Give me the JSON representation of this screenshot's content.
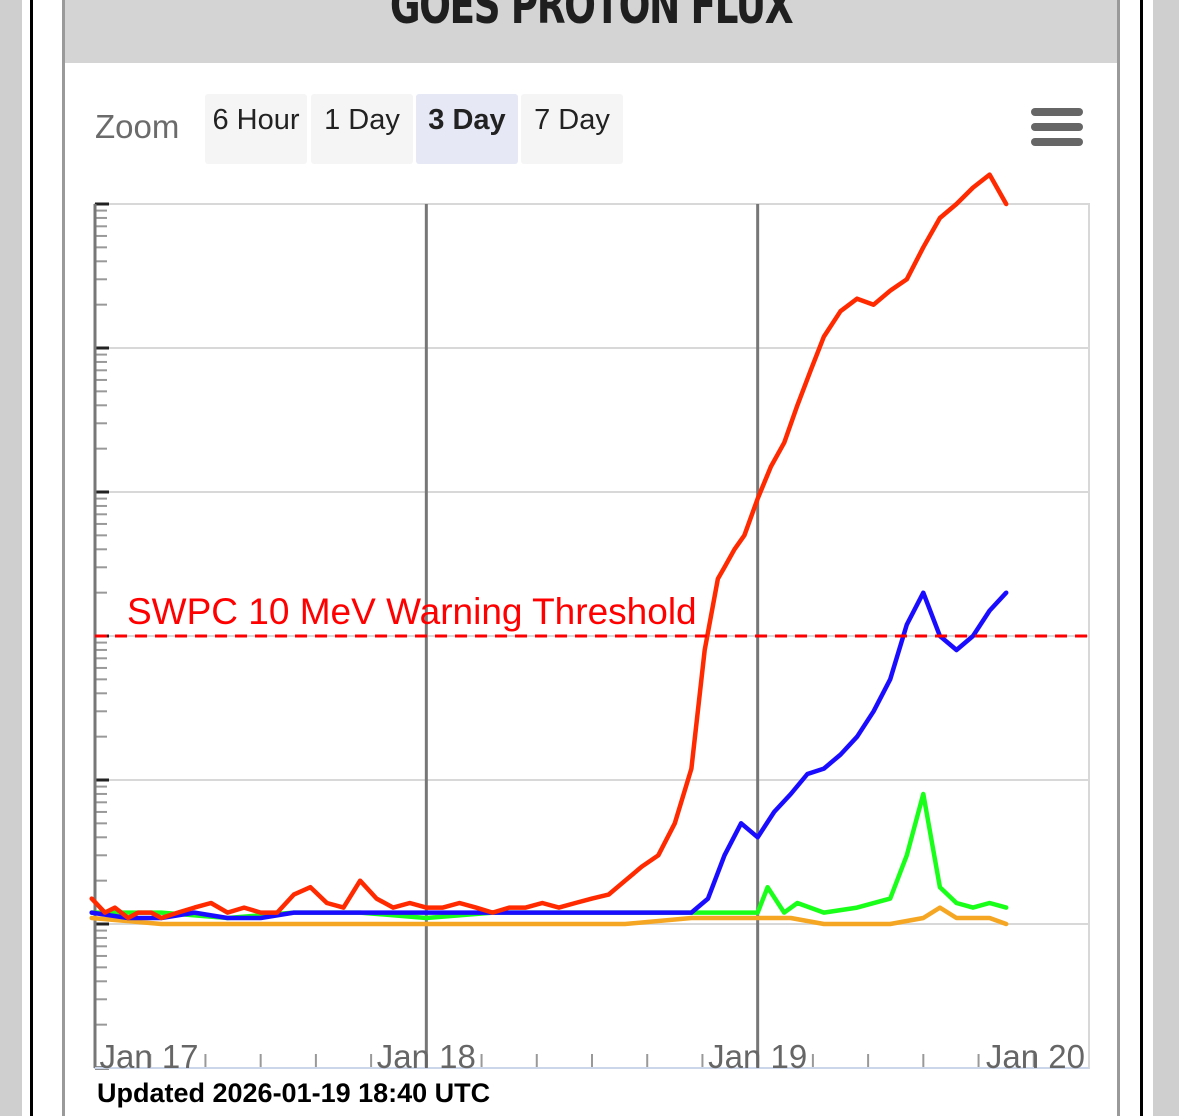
{
  "title": "GOES PROTON FLUX",
  "zoom": {
    "label": "Zoom",
    "options": [
      "6 Hour",
      "1 Day",
      "3 Day",
      "7 Day"
    ],
    "selected": "3 Day"
  },
  "menu_icon": "hamburger-menu-icon",
  "updated": "Updated 2026-01-19 18:40 UTC",
  "threshold": {
    "label": "SWPC 10 MeV Warning Threshold",
    "value": 10,
    "color": "#ff0000"
  },
  "chart_data": {
    "type": "line",
    "x_label": "",
    "y_label": "",
    "x_ticks": [
      {
        "label": "Jan 17",
        "day": 17.0
      },
      {
        "label": "Jan 18",
        "day": 18.0
      },
      {
        "label": "Jan 19",
        "day": 19.0
      },
      {
        "label": "Jan 20",
        "day": 20.0
      }
    ],
    "xlim": [
      17.0,
      20.0
    ],
    "y_scale": "log",
    "ylim": [
      0.01,
      10000
    ],
    "grid": true,
    "series": [
      {
        "color": "#ff2a00",
        "x": [
          16.99,
          17.03,
          17.06,
          17.1,
          17.13,
          17.17,
          17.2,
          17.25,
          17.3,
          17.35,
          17.4,
          17.45,
          17.5,
          17.55,
          17.6,
          17.65,
          17.7,
          17.75,
          17.8,
          17.85,
          17.9,
          17.95,
          18.0,
          18.05,
          18.1,
          18.15,
          18.2,
          18.25,
          18.3,
          18.35,
          18.4,
          18.45,
          18.5,
          18.55,
          18.6,
          18.65,
          18.7,
          18.75,
          18.8,
          18.84,
          18.88,
          18.9,
          18.93,
          18.96,
          19.0,
          19.04,
          19.08,
          19.12,
          19.16,
          19.2,
          19.25,
          19.3,
          19.35,
          19.4,
          19.45,
          19.5,
          19.55,
          19.6,
          19.65,
          19.7,
          19.75
        ],
        "y": [
          0.15,
          0.12,
          0.13,
          0.11,
          0.12,
          0.12,
          0.11,
          0.12,
          0.13,
          0.14,
          0.12,
          0.13,
          0.12,
          0.12,
          0.16,
          0.18,
          0.14,
          0.13,
          0.2,
          0.15,
          0.13,
          0.14,
          0.13,
          0.13,
          0.14,
          0.13,
          0.12,
          0.13,
          0.13,
          0.14,
          0.13,
          0.14,
          0.15,
          0.16,
          0.2,
          0.25,
          0.3,
          0.5,
          1.2,
          8,
          25,
          30,
          40,
          50,
          90,
          150,
          220,
          400,
          700,
          1200,
          1800,
          2200,
          2000,
          2500,
          3000,
          5000,
          8000,
          10000,
          13000,
          16000,
          10000
        ]
      },
      {
        "color": "#1a0dff",
        "x": [
          16.99,
          17.1,
          17.2,
          17.3,
          17.4,
          17.5,
          17.6,
          17.7,
          17.8,
          17.9,
          18.0,
          18.1,
          18.2,
          18.3,
          18.4,
          18.5,
          18.6,
          18.7,
          18.8,
          18.85,
          18.9,
          18.95,
          19.0,
          19.05,
          19.1,
          19.15,
          19.2,
          19.25,
          19.3,
          19.35,
          19.4,
          19.45,
          19.5,
          19.55,
          19.6,
          19.65,
          19.7,
          19.75
        ],
        "y": [
          0.12,
          0.11,
          0.11,
          0.12,
          0.11,
          0.11,
          0.12,
          0.12,
          0.12,
          0.12,
          0.12,
          0.12,
          0.12,
          0.12,
          0.12,
          0.12,
          0.12,
          0.12,
          0.12,
          0.15,
          0.3,
          0.5,
          0.4,
          0.6,
          0.8,
          1.1,
          1.2,
          1.5,
          2.0,
          3.0,
          5.0,
          12,
          20,
          10,
          8,
          10,
          15,
          20
        ]
      },
      {
        "color": "#1aff1a",
        "x": [
          16.99,
          17.2,
          17.4,
          17.6,
          17.8,
          18.0,
          18.2,
          18.4,
          18.6,
          18.8,
          18.95,
          19.0,
          19.03,
          19.08,
          19.12,
          19.2,
          19.3,
          19.4,
          19.45,
          19.5,
          19.55,
          19.6,
          19.65,
          19.7,
          19.75
        ],
        "y": [
          0.12,
          0.12,
          0.11,
          0.12,
          0.12,
          0.11,
          0.12,
          0.12,
          0.12,
          0.12,
          0.12,
          0.12,
          0.18,
          0.12,
          0.14,
          0.12,
          0.13,
          0.15,
          0.3,
          0.8,
          0.18,
          0.14,
          0.13,
          0.14,
          0.13
        ]
      },
      {
        "color": "#f5a623",
        "x": [
          16.99,
          17.2,
          17.4,
          17.6,
          17.8,
          18.0,
          18.2,
          18.4,
          18.6,
          18.8,
          19.0,
          19.1,
          19.2,
          19.3,
          19.4,
          19.5,
          19.55,
          19.6,
          19.65,
          19.7,
          19.75
        ],
        "y": [
          0.11,
          0.1,
          0.1,
          0.1,
          0.1,
          0.1,
          0.1,
          0.1,
          0.1,
          0.11,
          0.11,
          0.11,
          0.1,
          0.1,
          0.1,
          0.11,
          0.13,
          0.11,
          0.11,
          0.11,
          0.1
        ]
      }
    ]
  }
}
